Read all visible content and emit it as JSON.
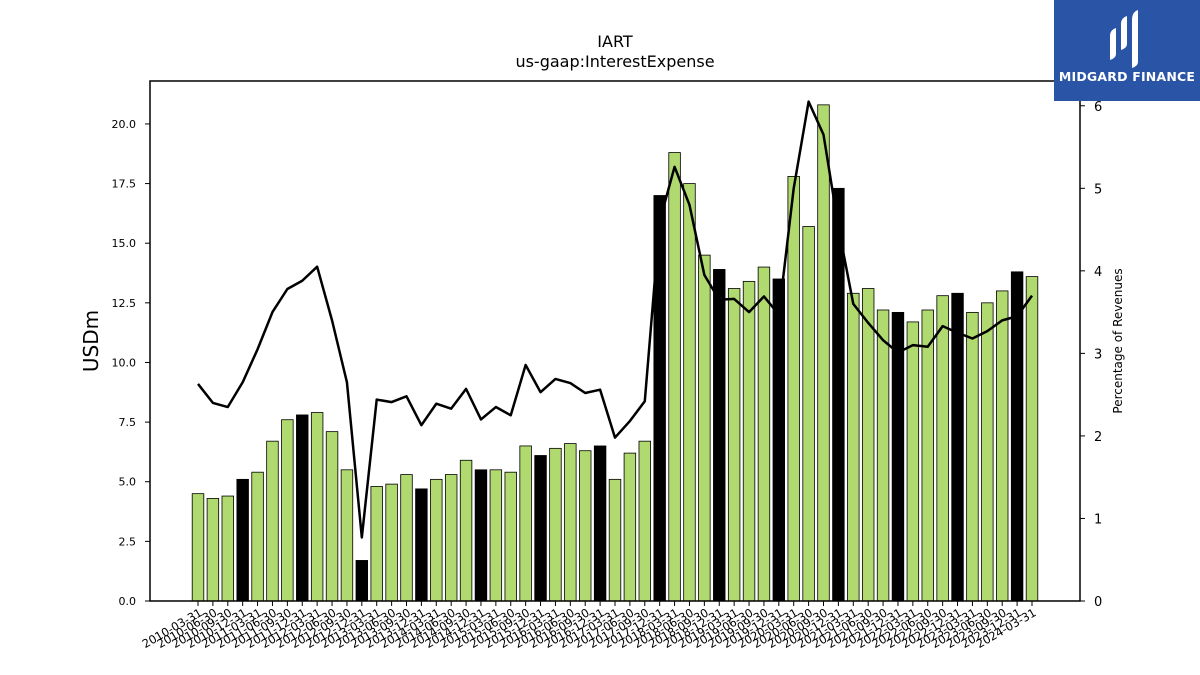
{
  "chart_data": {
    "type": "bar",
    "title": "IART",
    "subtitle": "us-gaap:InterestExpense",
    "ylabel": "USDm",
    "y2label": "Percentage of Revenues",
    "ylim": [
      0,
      21.8
    ],
    "y2lim": [
      0,
      6.3
    ],
    "yticks": [
      "0.0",
      "2.5",
      "5.0",
      "7.5",
      "10.0",
      "12.5",
      "15.0",
      "17.5",
      "20.0"
    ],
    "y2ticks": [
      "0",
      "1",
      "2",
      "3",
      "4",
      "5",
      "6"
    ],
    "grid": false,
    "colors": {
      "quarter": "#b0d96f",
      "year_end": "#000000",
      "line": "#000000"
    },
    "categories": [
      "2010-03-31",
      "2010-06-30",
      "2010-09-30",
      "2010-12-31",
      "2011-03-31",
      "2011-06-30",
      "2011-09-30",
      "2011-12-31",
      "2012-03-31",
      "2012-06-30",
      "2012-09-30",
      "2012-12-31",
      "2013-03-31",
      "2013-06-30",
      "2013-09-30",
      "2013-12-31",
      "2014-03-31",
      "2014-06-30",
      "2014-09-30",
      "2014-12-31",
      "2015-03-31",
      "2015-06-30",
      "2015-09-30",
      "2015-12-31",
      "2016-03-31",
      "2016-06-30",
      "2016-09-30",
      "2016-12-31",
      "2017-03-31",
      "2017-06-30",
      "2017-09-30",
      "2017-12-31",
      "2018-03-31",
      "2018-06-30",
      "2018-09-30",
      "2018-12-31",
      "2019-03-31",
      "2019-06-30",
      "2019-09-30",
      "2019-12-31",
      "2020-03-31",
      "2020-06-30",
      "2020-09-30",
      "2020-12-31",
      "2021-03-31",
      "2021-06-30",
      "2021-09-30",
      "2021-12-31",
      "2022-03-31",
      "2022-06-30",
      "2022-09-30",
      "2022-12-31",
      "2023-03-31",
      "2023-06-30",
      "2023-09-30",
      "2023-12-31",
      "2024-03-31"
    ],
    "series": [
      {
        "type": "bar",
        "axis": "left",
        "values": [
          4.5,
          4.3,
          4.4,
          5.1,
          5.4,
          6.7,
          7.6,
          7.8,
          7.9,
          7.1,
          5.5,
          1.7,
          4.8,
          4.9,
          5.3,
          4.7,
          5.1,
          5.3,
          5.9,
          5.5,
          5.5,
          5.4,
          6.5,
          6.1,
          6.4,
          6.6,
          6.3,
          6.5,
          5.1,
          6.2,
          6.7,
          17.0,
          18.8,
          17.5,
          14.5,
          13.9,
          13.1,
          13.4,
          14.0,
          13.5,
          17.8,
          15.7,
          20.8,
          17.3,
          12.9,
          13.1,
          12.2,
          12.1,
          11.7,
          12.2,
          12.8,
          12.9,
          12.1,
          12.5,
          13.0,
          13.8,
          13.6
        ]
      },
      {
        "type": "line",
        "axis": "right",
        "values": [
          2.63,
          2.4,
          2.35,
          2.65,
          3.05,
          3.5,
          3.78,
          3.88,
          4.05,
          3.4,
          2.65,
          0.77,
          2.44,
          2.41,
          2.48,
          2.13,
          2.39,
          2.33,
          2.57,
          2.2,
          2.35,
          2.25,
          2.86,
          2.53,
          2.69,
          2.64,
          2.52,
          2.56,
          1.98,
          2.18,
          2.42,
          4.6,
          5.26,
          4.8,
          3.95,
          3.65,
          3.66,
          3.5,
          3.69,
          3.47,
          5.0,
          6.05,
          5.65,
          4.53,
          3.6,
          3.37,
          3.16,
          3.01,
          3.1,
          3.08,
          3.33,
          3.25,
          3.18,
          3.27,
          3.4,
          3.45,
          3.7
        ]
      }
    ]
  },
  "branding": {
    "name": "MIDGARD FINANCE"
  }
}
